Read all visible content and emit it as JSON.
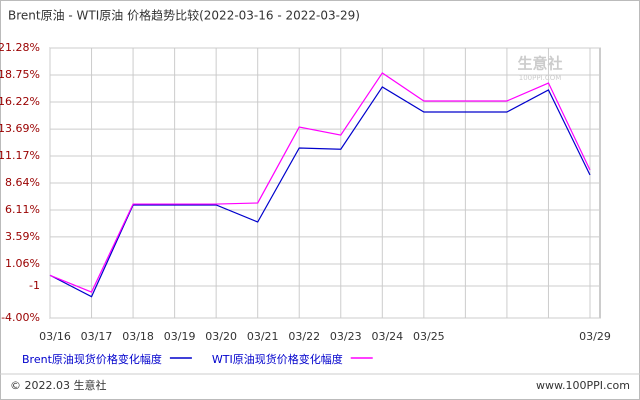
{
  "chart_data": {
    "type": "line",
    "title": "Brent原油 - WTI原油 价格趋势比较(2022-03-16 - 2022-03-29)",
    "categories": [
      "03/16",
      "03/17",
      "03/18",
      "03/19",
      "03/20",
      "03/21",
      "03/22",
      "03/23",
      "03/24",
      "03/25",
      null,
      null,
      null,
      "03/29"
    ],
    "series": [
      {
        "name": "Brent原油现货价格变化幅度",
        "color": "#0000cc",
        "values": [
          0,
          -2.0,
          6.58,
          6.58,
          6.58,
          4.99,
          11.92,
          11.8,
          17.63,
          15.29,
          15.29,
          15.29,
          17.35,
          9.39
        ]
      },
      {
        "name": "WTI原油现货价格变化幅度",
        "color": "#ff00ff",
        "values": [
          0,
          -1.57,
          6.67,
          6.67,
          6.67,
          6.77,
          13.88,
          13.13,
          18.94,
          16.32,
          16.32,
          16.32,
          18.0,
          9.86
        ]
      }
    ],
    "ylim": [
      -4,
      21.28
    ],
    "yticks": [
      {
        "value": -4,
        "label": "-4.00%"
      },
      -1,
      {
        "value": 1.06,
        "label": "1.06%"
      },
      {
        "value": 3.59,
        "label": "3.59%"
      },
      {
        "value": 6.11,
        "label": "6.11%"
      },
      {
        "value": 8.64,
        "label": "8.64%"
      },
      {
        "value": 11.17,
        "label": "11.17%"
      },
      {
        "value": 13.69,
        "label": "13.69%"
      },
      {
        "value": 16.22,
        "label": "16.22%"
      },
      {
        "value": 18.75,
        "label": "18.75%"
      },
      {
        "value": 21.28,
        "label": "21.28%"
      }
    ],
    "grid": true,
    "watermark": "生意社",
    "watermark_sub": "100PPI.COM",
    "footer_left": "© 2022.03 生意社",
    "footer_right": "www.100PPI.com"
  }
}
